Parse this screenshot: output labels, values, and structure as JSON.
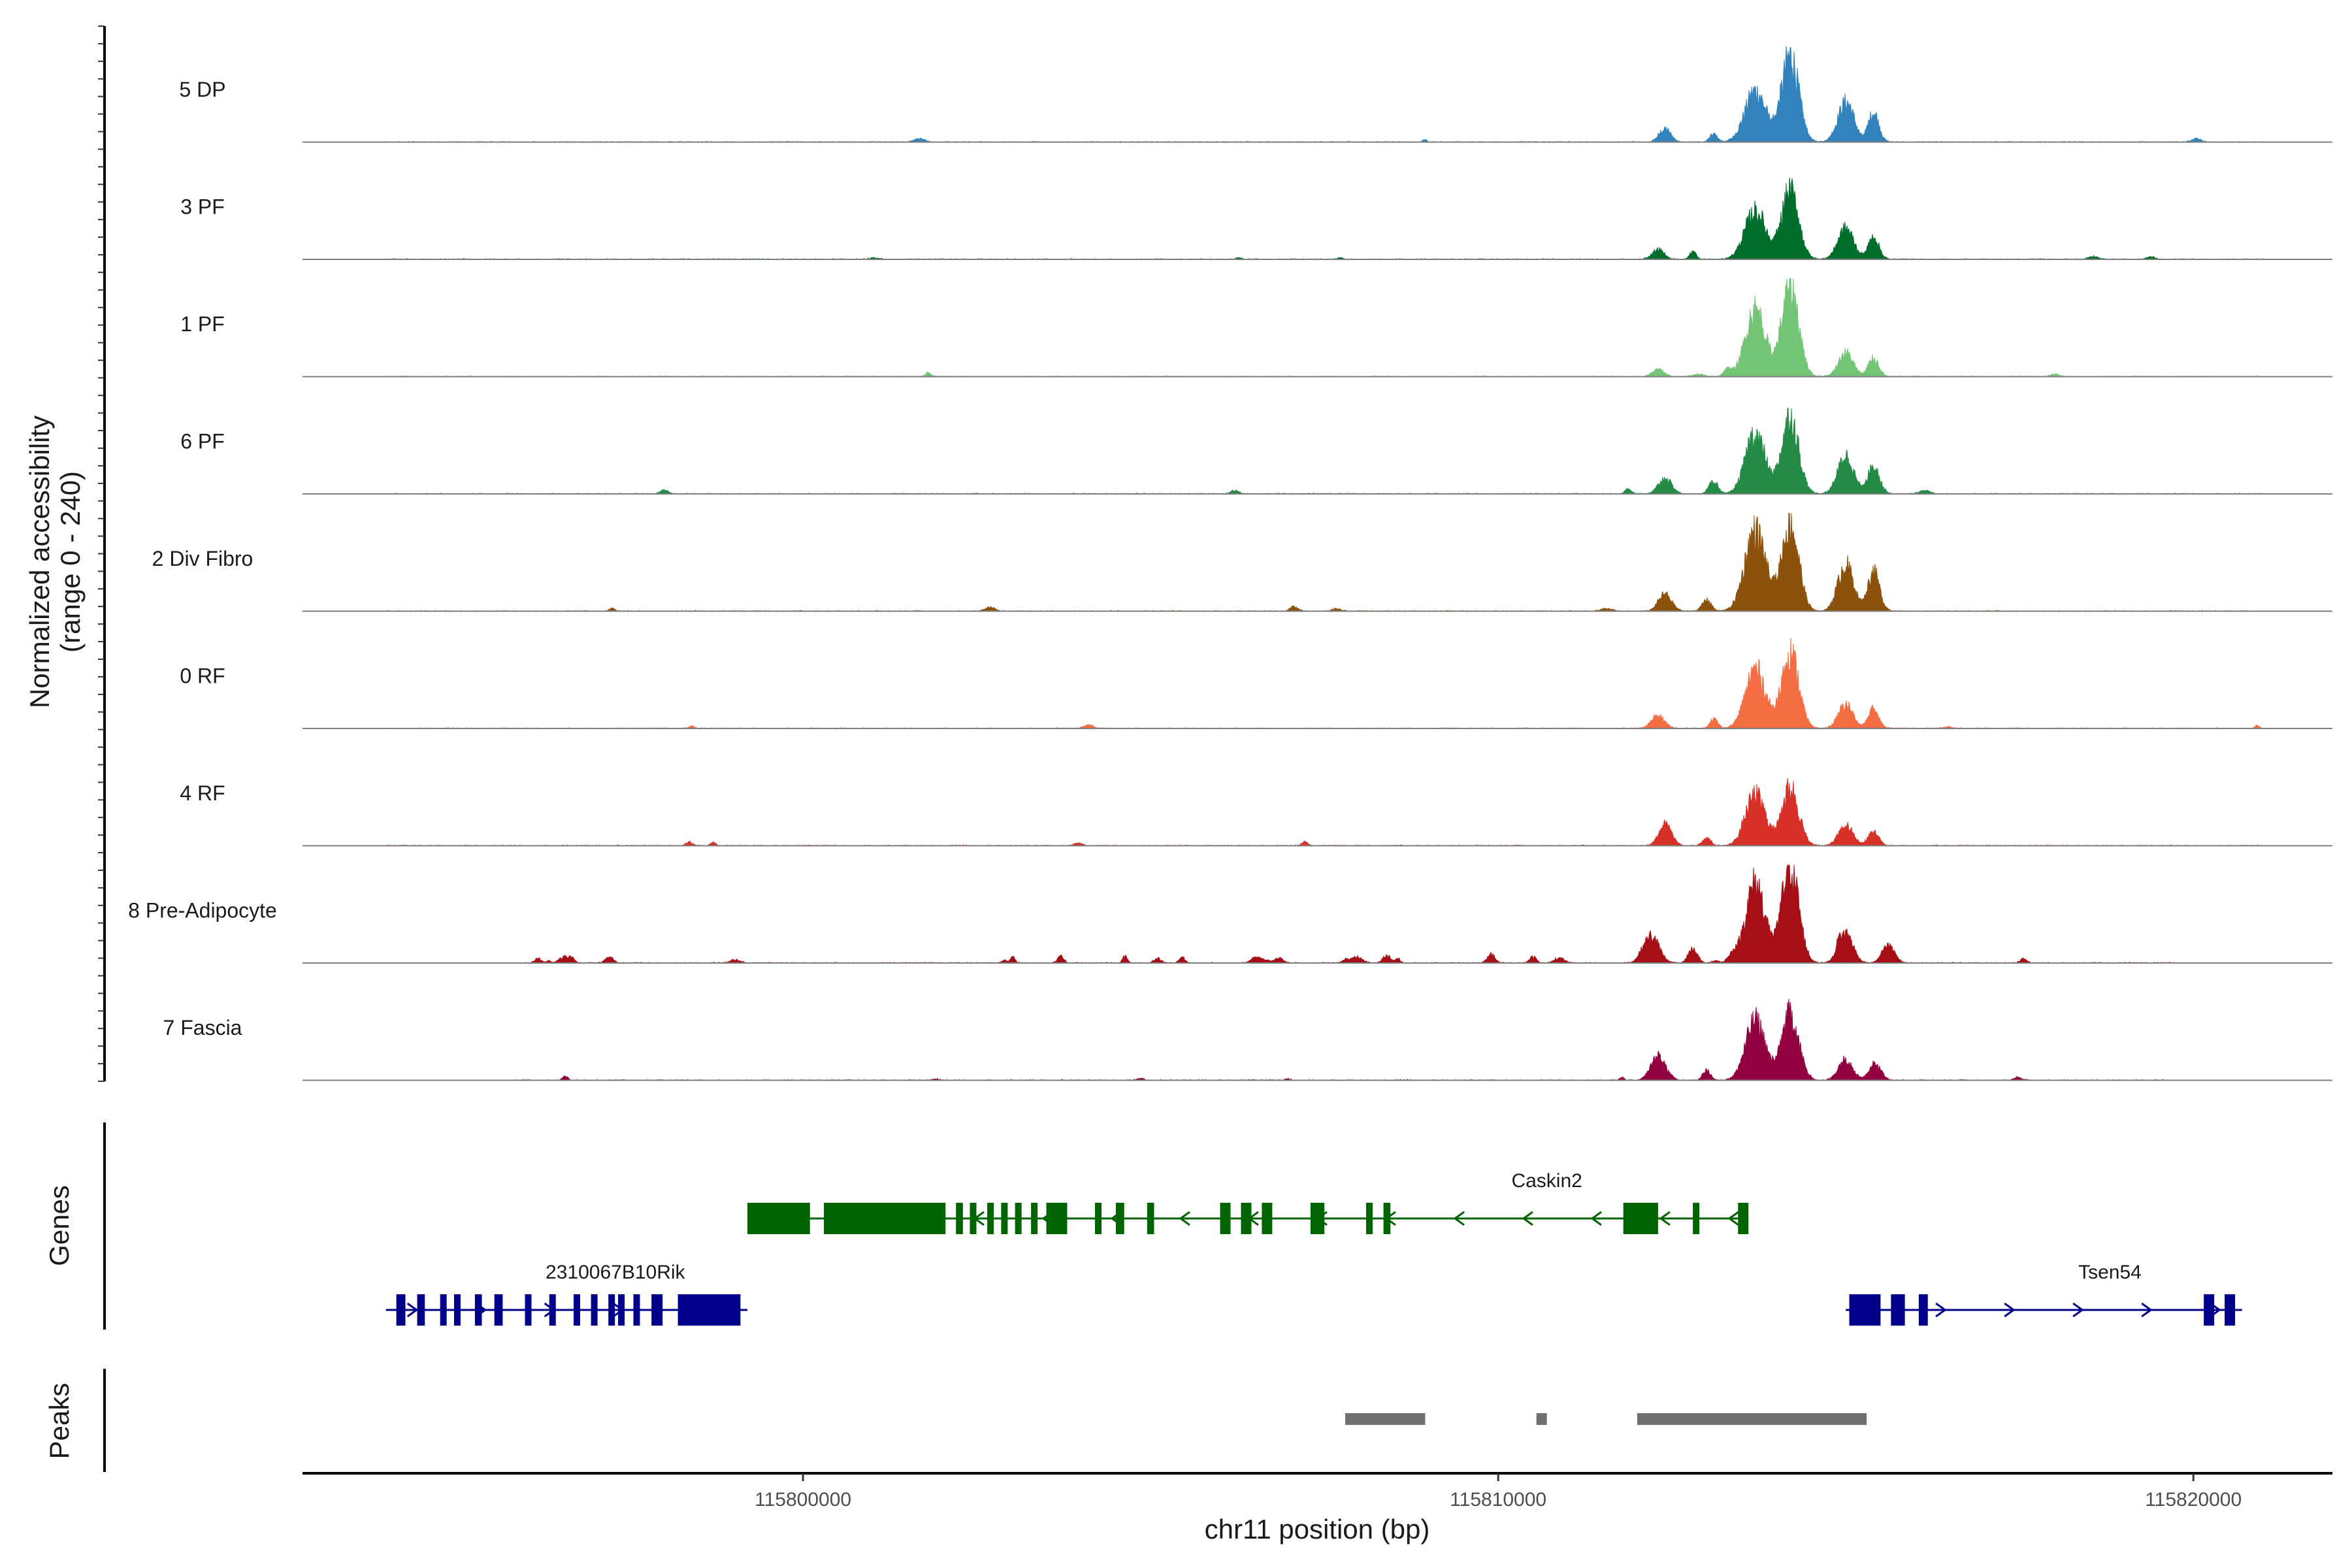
{
  "chart_data": {
    "type": "area",
    "title": "",
    "xlabel": "chr11 position (bp)",
    "ylabel_line1": "Normalized accessibility",
    "ylabel_line2": "(range 0 - 240)",
    "y_range": [
      0,
      240
    ],
    "x_range": [
      115792800,
      115822000
    ],
    "x_ticks": [
      {
        "value": 115800000,
        "label": "115800000"
      },
      {
        "value": 115810000,
        "label": "115810000"
      },
      {
        "value": 115820000,
        "label": "115820000"
      }
    ],
    "panel_labels": {
      "genes": "Genes",
      "peaks": "Peaks"
    },
    "tracks": [
      {
        "name": "5 DP",
        "color": "#3182bd",
        "noise": 4,
        "noise_max": 1.0,
        "noise_range": [
          115794000,
          115821000
        ],
        "peaks": [
          [
            115812400,
            90,
            9
          ],
          [
            115813100,
            55,
            6
          ],
          [
            115813700,
            360,
            16
          ],
          [
            115814200,
            610,
            13
          ],
          [
            115815000,
            280,
            12
          ],
          [
            115815400,
            210,
            8
          ]
        ]
      },
      {
        "name": "3 PF",
        "color": "#006d2c",
        "noise": 5,
        "noise_max": 1.0,
        "noise_range": [
          115794000,
          115821000
        ],
        "peaks": [
          [
            115812300,
            70,
            9
          ],
          [
            115812800,
            55,
            5
          ],
          [
            115813700,
            340,
            16
          ],
          [
            115814200,
            480,
            13
          ],
          [
            115815000,
            220,
            12
          ],
          [
            115815400,
            160,
            8
          ]
        ]
      },
      {
        "name": "1 PF",
        "color": "#74c476",
        "noise": 3,
        "noise_max": 1.0,
        "noise_range": [
          115794000,
          115821000
        ],
        "peaks": [
          [
            115812300,
            50,
            9
          ],
          [
            115813300,
            50,
            6
          ],
          [
            115813700,
            480,
            15
          ],
          [
            115814200,
            640,
            13
          ],
          [
            115815000,
            170,
            11
          ],
          [
            115815400,
            130,
            8
          ]
        ]
      },
      {
        "name": "6 PF",
        "color": "#238b45",
        "noise": 6,
        "noise_max": 1.2,
        "noise_range": [
          115794000,
          115821000
        ],
        "peaks": [
          [
            115812400,
            110,
            10
          ],
          [
            115813100,
            90,
            7
          ],
          [
            115813700,
            420,
            15
          ],
          [
            115814200,
            540,
            13
          ],
          [
            115815000,
            270,
            12
          ],
          [
            115815400,
            200,
            9
          ]
        ]
      },
      {
        "name": "2 Div Fibro",
        "color": "#8c510a",
        "noise": 6,
        "noise_max": 1.0,
        "noise_range": [
          115794000,
          115821000
        ],
        "peaks": [
          [
            115812400,
            120,
            10
          ],
          [
            115813000,
            80,
            7
          ],
          [
            115813700,
            560,
            16
          ],
          [
            115814200,
            620,
            13
          ],
          [
            115815000,
            330,
            12
          ],
          [
            115815400,
            280,
            9
          ]
        ]
      },
      {
        "name": "0 RF",
        "color": "#f46d43",
        "noise": 4,
        "noise_max": 1.0,
        "noise_range": [
          115794000,
          115821000
        ],
        "peaks": [
          [
            115812300,
            90,
            10
          ],
          [
            115813100,
            70,
            6
          ],
          [
            115813700,
            420,
            15
          ],
          [
            115814200,
            540,
            13
          ],
          [
            115815000,
            170,
            11
          ],
          [
            115815400,
            140,
            8
          ]
        ]
      },
      {
        "name": "4 RF",
        "color": "#d73027",
        "noise": 5,
        "noise_max": 1.0,
        "noise_range": [
          115794000,
          115821000
        ],
        "peaks": [
          [
            115812400,
            140,
            10
          ],
          [
            115813000,
            60,
            6
          ],
          [
            115813700,
            360,
            15
          ],
          [
            115814200,
            410,
            13
          ],
          [
            115815000,
            140,
            11
          ],
          [
            115815400,
            100,
            8
          ]
        ]
      },
      {
        "name": "8 Pre-Adipocyte",
        "color": "#a50f15",
        "noise": 26,
        "noise_max": 1.6,
        "noise_range": [
          115796000,
          115819800
        ],
        "peaks": [
          [
            115812200,
            190,
            12
          ],
          [
            115812800,
            100,
            7
          ],
          [
            115813700,
            560,
            15
          ],
          [
            115814200,
            700,
            13
          ],
          [
            115815000,
            210,
            11
          ],
          [
            115815600,
            110,
            9
          ],
          [
            115809900,
            60,
            6
          ],
          [
            115810500,
            45,
            5
          ],
          [
            115808400,
            55,
            6
          ]
        ]
      },
      {
        "name": "7 Fascia",
        "color": "#91003f",
        "noise": 8,
        "noise_max": 1.0,
        "noise_range": [
          115795800,
          115819800
        ],
        "peaks": [
          [
            115812300,
            170,
            11
          ],
          [
            115813000,
            70,
            6
          ],
          [
            115813700,
            420,
            15
          ],
          [
            115814200,
            470,
            13
          ],
          [
            115815000,
            150,
            11
          ],
          [
            115815400,
            110,
            8
          ]
        ]
      }
    ],
    "genes": [
      {
        "name": "Caskin2",
        "strand": "-",
        "color": "#006400",
        "row": 0,
        "label_x": 115810700,
        "start": 115799200,
        "end": 115813600,
        "exons": [
          [
            115799200,
            115800100
          ],
          [
            115800300,
            115802050
          ],
          [
            115802200,
            115802300
          ],
          [
            115802400,
            115802480
          ],
          [
            115802650,
            115802720
          ],
          [
            115802850,
            115802930
          ],
          [
            115803050,
            115803130
          ],
          [
            115803280,
            115803350
          ],
          [
            115803500,
            115803800
          ],
          [
            115804200,
            115804270
          ],
          [
            115804500,
            115804620
          ],
          [
            115804950,
            115805050
          ],
          [
            115806000,
            115806150
          ],
          [
            115806300,
            115806450
          ],
          [
            115806600,
            115806750
          ],
          [
            115807300,
            115807500
          ],
          [
            115808100,
            115808180
          ],
          [
            115808350,
            115808450
          ],
          [
            115811800,
            115812300
          ],
          [
            115812800,
            115812860
          ],
          [
            115813450,
            115813600
          ]
        ]
      },
      {
        "name": "2310067B10Rik",
        "strand": "+",
        "color": "#00008b",
        "row": 1,
        "label_x": 115797300,
        "start": 115794000,
        "end": 115799200,
        "exons": [
          [
            115794150,
            115794280
          ],
          [
            115794450,
            115794560
          ],
          [
            115794780,
            115794850
          ],
          [
            115794980,
            115795050
          ],
          [
            115795280,
            115795380
          ],
          [
            115795560,
            115795680
          ],
          [
            115796000,
            115796070
          ],
          [
            115796350,
            115796430
          ],
          [
            115796700,
            115796770
          ],
          [
            115796950,
            115797020
          ],
          [
            115797200,
            115797260
          ],
          [
            115797340,
            115797430
          ],
          [
            115797560,
            115797650
          ],
          [
            115797820,
            115797980
          ],
          [
            115798200,
            115799100
          ]
        ]
      },
      {
        "name": "Tsen54",
        "strand": "+",
        "color": "#00008b",
        "row": 1,
        "label_x": 115818800,
        "start": 115815000,
        "end": 115820700,
        "exons": [
          [
            115815050,
            115815500
          ],
          [
            115815650,
            115815850
          ],
          [
            115816050,
            115816180
          ],
          [
            115820150,
            115820300
          ],
          [
            115820450,
            115820600
          ]
        ]
      }
    ],
    "peaks_regions": [
      [
        115807800,
        115808950
      ],
      [
        115810550,
        115810700
      ],
      [
        115812000,
        115815300
      ]
    ]
  }
}
